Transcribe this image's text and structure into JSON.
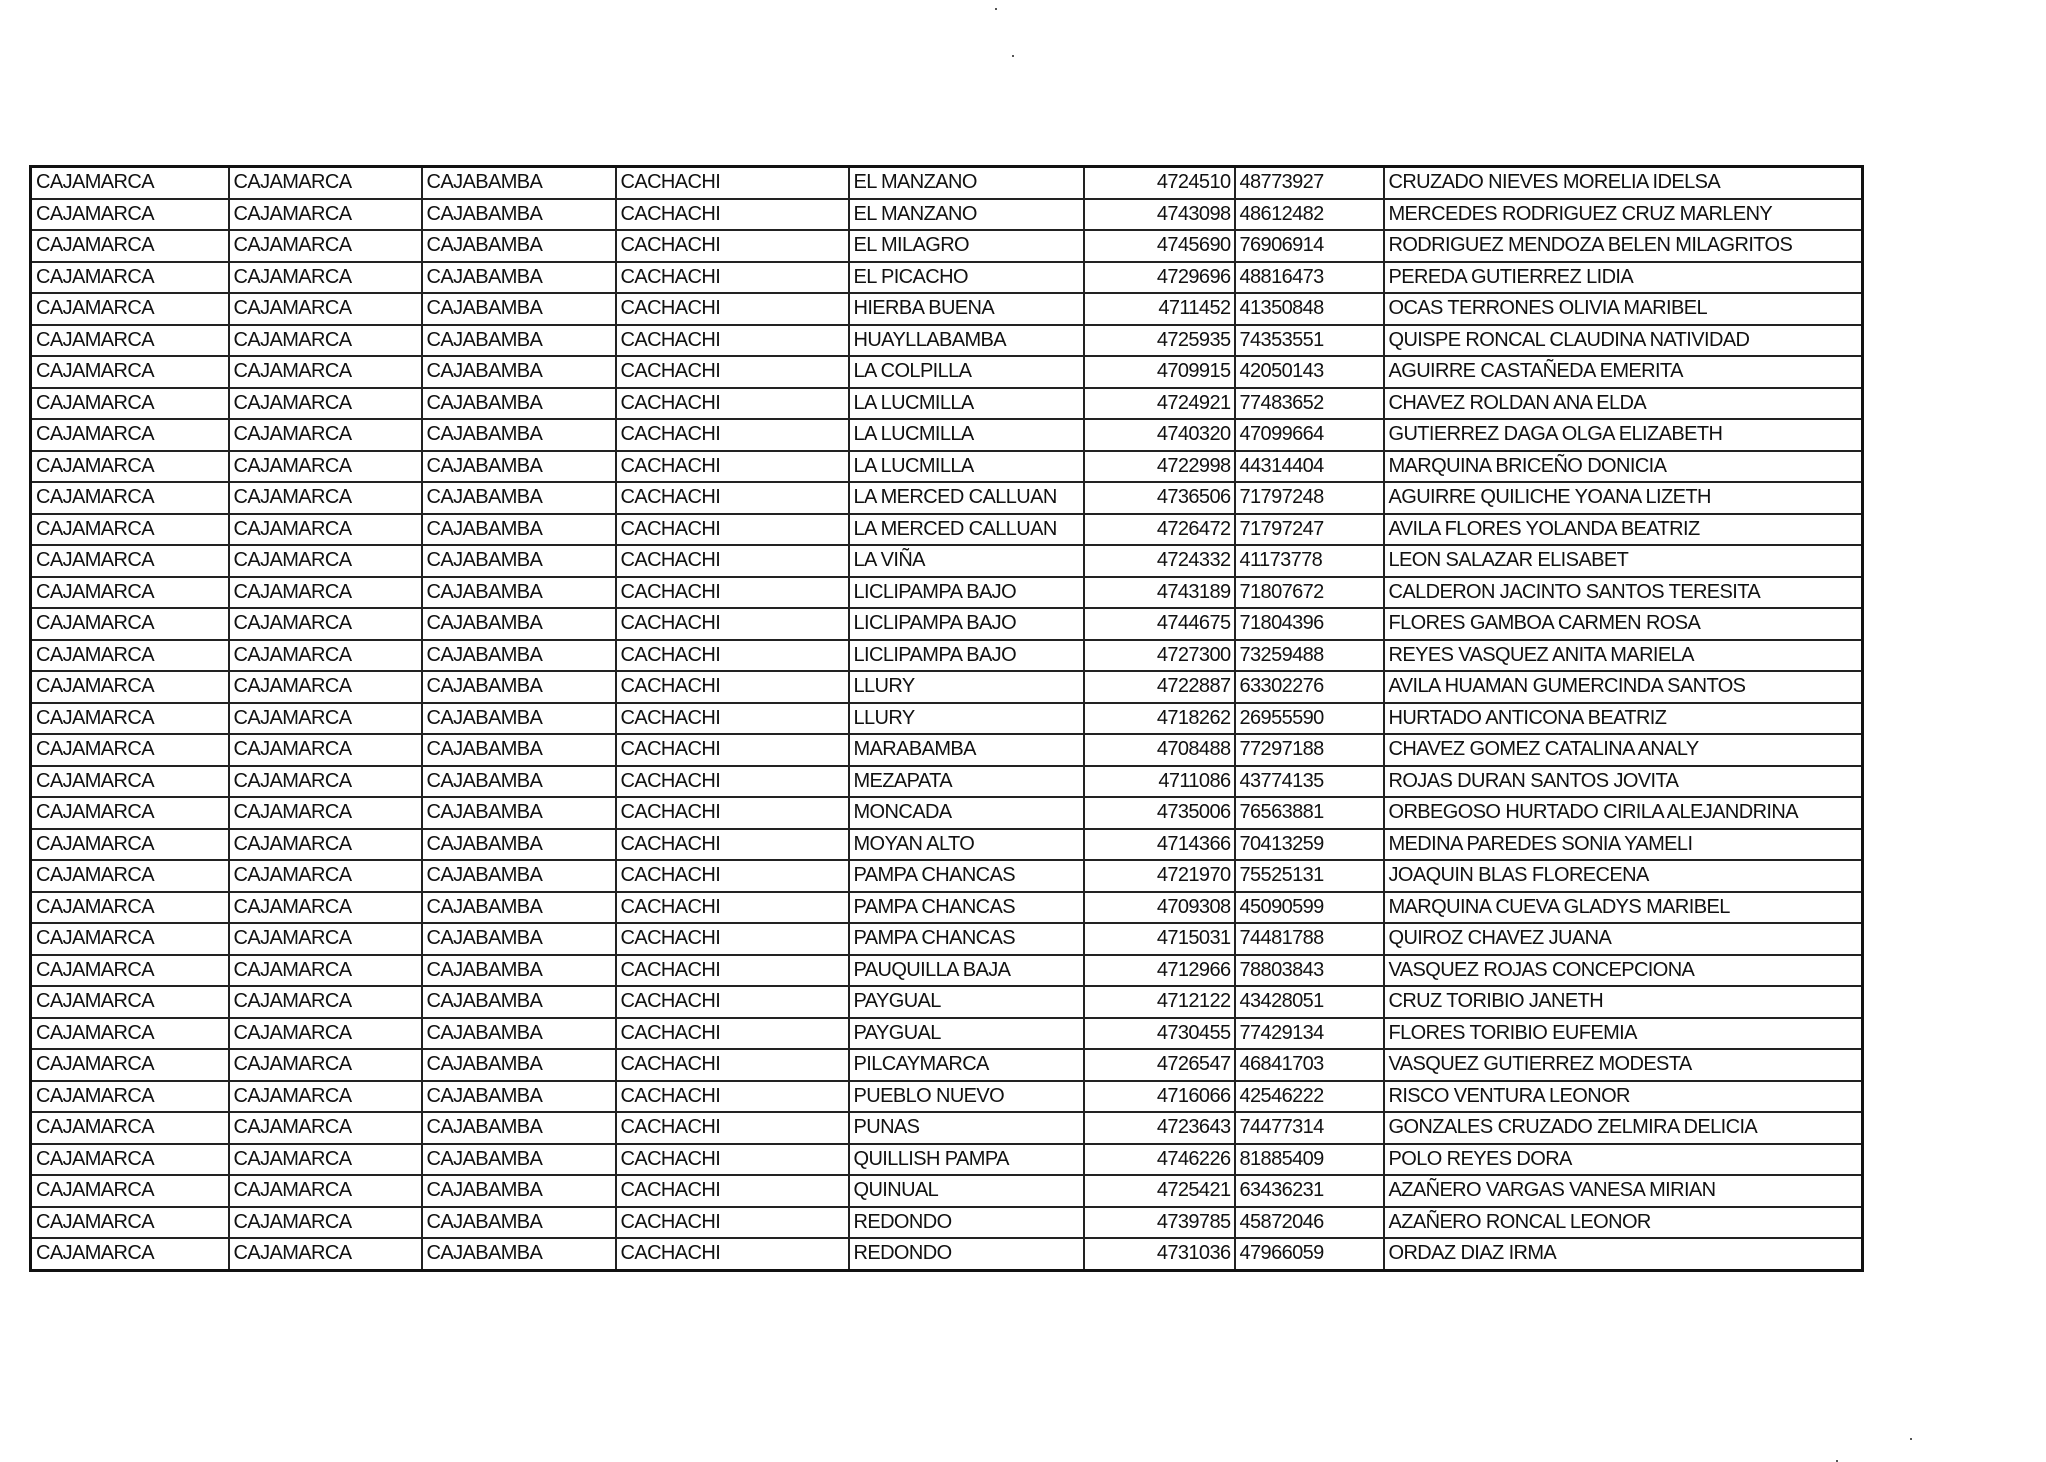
{
  "table": {
    "rows": [
      [
        "CAJAMARCA",
        "CAJAMARCA",
        "CAJABAMBA",
        "CACHACHI",
        "EL MANZANO",
        "4724510",
        "48773927",
        "CRUZADO NIEVES MORELIA IDELSA"
      ],
      [
        "CAJAMARCA",
        "CAJAMARCA",
        "CAJABAMBA",
        "CACHACHI",
        "EL MANZANO",
        "4743098",
        "48612482",
        "MERCEDES RODRIGUEZ CRUZ MARLENY"
      ],
      [
        "CAJAMARCA",
        "CAJAMARCA",
        "CAJABAMBA",
        "CACHACHI",
        "EL MILAGRO",
        "4745690",
        "76906914",
        "RODRIGUEZ MENDOZA BELEN MILAGRITOS"
      ],
      [
        "CAJAMARCA",
        "CAJAMARCA",
        "CAJABAMBA",
        "CACHACHI",
        "EL PICACHO",
        "4729696",
        "48816473",
        "PEREDA GUTIERREZ LIDIA"
      ],
      [
        "CAJAMARCA",
        "CAJAMARCA",
        "CAJABAMBA",
        "CACHACHI",
        "HIERBA BUENA",
        "4711452",
        "41350848",
        "OCAS TERRONES OLIVIA MARIBEL"
      ],
      [
        "CAJAMARCA",
        "CAJAMARCA",
        "CAJABAMBA",
        "CACHACHI",
        "HUAYLLABAMBA",
        "4725935",
        "74353551",
        "QUISPE RONCAL CLAUDINA NATIVIDAD"
      ],
      [
        "CAJAMARCA",
        "CAJAMARCA",
        "CAJABAMBA",
        "CACHACHI",
        "LA COLPILLA",
        "4709915",
        "42050143",
        "AGUIRRE CASTAÑEDA EMERITA"
      ],
      [
        "CAJAMARCA",
        "CAJAMARCA",
        "CAJABAMBA",
        "CACHACHI",
        "LA LUCMILLA",
        "4724921",
        "77483652",
        "CHAVEZ ROLDAN ANA ELDA"
      ],
      [
        "CAJAMARCA",
        "CAJAMARCA",
        "CAJABAMBA",
        "CACHACHI",
        "LA LUCMILLA",
        "4740320",
        "47099664",
        "GUTIERREZ DAGA OLGA ELIZABETH"
      ],
      [
        "CAJAMARCA",
        "CAJAMARCA",
        "CAJABAMBA",
        "CACHACHI",
        "LA LUCMILLA",
        "4722998",
        "44314404",
        "MARQUINA BRICEÑO DONICIA"
      ],
      [
        "CAJAMARCA",
        "CAJAMARCA",
        "CAJABAMBA",
        "CACHACHI",
        "LA MERCED CALLUAN",
        "4736506",
        "71797248",
        "AGUIRRE QUILICHE YOANA LIZETH"
      ],
      [
        "CAJAMARCA",
        "CAJAMARCA",
        "CAJABAMBA",
        "CACHACHI",
        "LA MERCED CALLUAN",
        "4726472",
        "71797247",
        "AVILA FLORES YOLANDA BEATRIZ"
      ],
      [
        "CAJAMARCA",
        "CAJAMARCA",
        "CAJABAMBA",
        "CACHACHI",
        "LA VIÑA",
        "4724332",
        "41173778",
        "LEON SALAZAR ELISABET"
      ],
      [
        "CAJAMARCA",
        "CAJAMARCA",
        "CAJABAMBA",
        "CACHACHI",
        "LICLIPAMPA BAJO",
        "4743189",
        "71807672",
        "CALDERON JACINTO SANTOS TERESITA"
      ],
      [
        "CAJAMARCA",
        "CAJAMARCA",
        "CAJABAMBA",
        "CACHACHI",
        "LICLIPAMPA BAJO",
        "4744675",
        "71804396",
        "FLORES GAMBOA CARMEN ROSA"
      ],
      [
        "CAJAMARCA",
        "CAJAMARCA",
        "CAJABAMBA",
        "CACHACHI",
        "LICLIPAMPA BAJO",
        "4727300",
        "73259488",
        "REYES VASQUEZ ANITA MARIELA"
      ],
      [
        "CAJAMARCA",
        "CAJAMARCA",
        "CAJABAMBA",
        "CACHACHI",
        "LLURY",
        "4722887",
        "63302276",
        "AVILA HUAMAN GUMERCINDA SANTOS"
      ],
      [
        "CAJAMARCA",
        "CAJAMARCA",
        "CAJABAMBA",
        "CACHACHI",
        "LLURY",
        "4718262",
        "26955590",
        "HURTADO ANTICONA BEATRIZ"
      ],
      [
        "CAJAMARCA",
        "CAJAMARCA",
        "CAJABAMBA",
        "CACHACHI",
        "MARABAMBA",
        "4708488",
        "77297188",
        "CHAVEZ GOMEZ CATALINA ANALY"
      ],
      [
        "CAJAMARCA",
        "CAJAMARCA",
        "CAJABAMBA",
        "CACHACHI",
        "MEZAPATA",
        "4711086",
        "43774135",
        "ROJAS DURAN SANTOS JOVITA"
      ],
      [
        "CAJAMARCA",
        "CAJAMARCA",
        "CAJABAMBA",
        "CACHACHI",
        "MONCADA",
        "4735006",
        "76563881",
        "ORBEGOSO HURTADO CIRILA ALEJANDRINA"
      ],
      [
        "CAJAMARCA",
        "CAJAMARCA",
        "CAJABAMBA",
        "CACHACHI",
        "MOYAN ALTO",
        "4714366",
        "70413259",
        "MEDINA PAREDES SONIA YAMELI"
      ],
      [
        "CAJAMARCA",
        "CAJAMARCA",
        "CAJABAMBA",
        "CACHACHI",
        "PAMPA CHANCAS",
        "4721970",
        "75525131",
        "JOAQUIN BLAS FLORECENA"
      ],
      [
        "CAJAMARCA",
        "CAJAMARCA",
        "CAJABAMBA",
        "CACHACHI",
        "PAMPA CHANCAS",
        "4709308",
        "45090599",
        "MARQUINA CUEVA GLADYS MARIBEL"
      ],
      [
        "CAJAMARCA",
        "CAJAMARCA",
        "CAJABAMBA",
        "CACHACHI",
        "PAMPA CHANCAS",
        "4715031",
        "74481788",
        "QUIROZ CHAVEZ JUANA"
      ],
      [
        "CAJAMARCA",
        "CAJAMARCA",
        "CAJABAMBA",
        "CACHACHI",
        "PAUQUILLA BAJA",
        "4712966",
        "78803843",
        "VASQUEZ ROJAS CONCEPCIONA"
      ],
      [
        "CAJAMARCA",
        "CAJAMARCA",
        "CAJABAMBA",
        "CACHACHI",
        "PAYGUAL",
        "4712122",
        "43428051",
        "CRUZ TORIBIO JANETH"
      ],
      [
        "CAJAMARCA",
        "CAJAMARCA",
        "CAJABAMBA",
        "CACHACHI",
        "PAYGUAL",
        "4730455",
        "77429134",
        "FLORES TORIBIO EUFEMIA"
      ],
      [
        "CAJAMARCA",
        "CAJAMARCA",
        "CAJABAMBA",
        "CACHACHI",
        "PILCAYMARCA",
        "4726547",
        "46841703",
        "VASQUEZ GUTIERREZ MODESTA"
      ],
      [
        "CAJAMARCA",
        "CAJAMARCA",
        "CAJABAMBA",
        "CACHACHI",
        "PUEBLO NUEVO",
        "4716066",
        "42546222",
        "RISCO VENTURA LEONOR"
      ],
      [
        "CAJAMARCA",
        "CAJAMARCA",
        "CAJABAMBA",
        "CACHACHI",
        "PUNAS",
        "4723643",
        "74477314",
        "GONZALES CRUZADO ZELMIRA DELICIA"
      ],
      [
        "CAJAMARCA",
        "CAJAMARCA",
        "CAJABAMBA",
        "CACHACHI",
        "QUILLISH PAMPA",
        "4746226",
        "81885409",
        "POLO REYES DORA"
      ],
      [
        "CAJAMARCA",
        "CAJAMARCA",
        "CAJABAMBA",
        "CACHACHI",
        "QUINUAL",
        "4725421",
        "63436231",
        "AZAÑERO VARGAS VANESA MIRIAN"
      ],
      [
        "CAJAMARCA",
        "CAJAMARCA",
        "CAJABAMBA",
        "CACHACHI",
        "REDONDO",
        "4739785",
        "45872046",
        "AZAÑERO RONCAL LEONOR"
      ],
      [
        "CAJAMARCA",
        "CAJAMARCA",
        "CAJABAMBA",
        "CACHACHI",
        "REDONDO",
        "4731036",
        "47966059",
        "ORDAZ DIAZ IRMA"
      ]
    ]
  }
}
